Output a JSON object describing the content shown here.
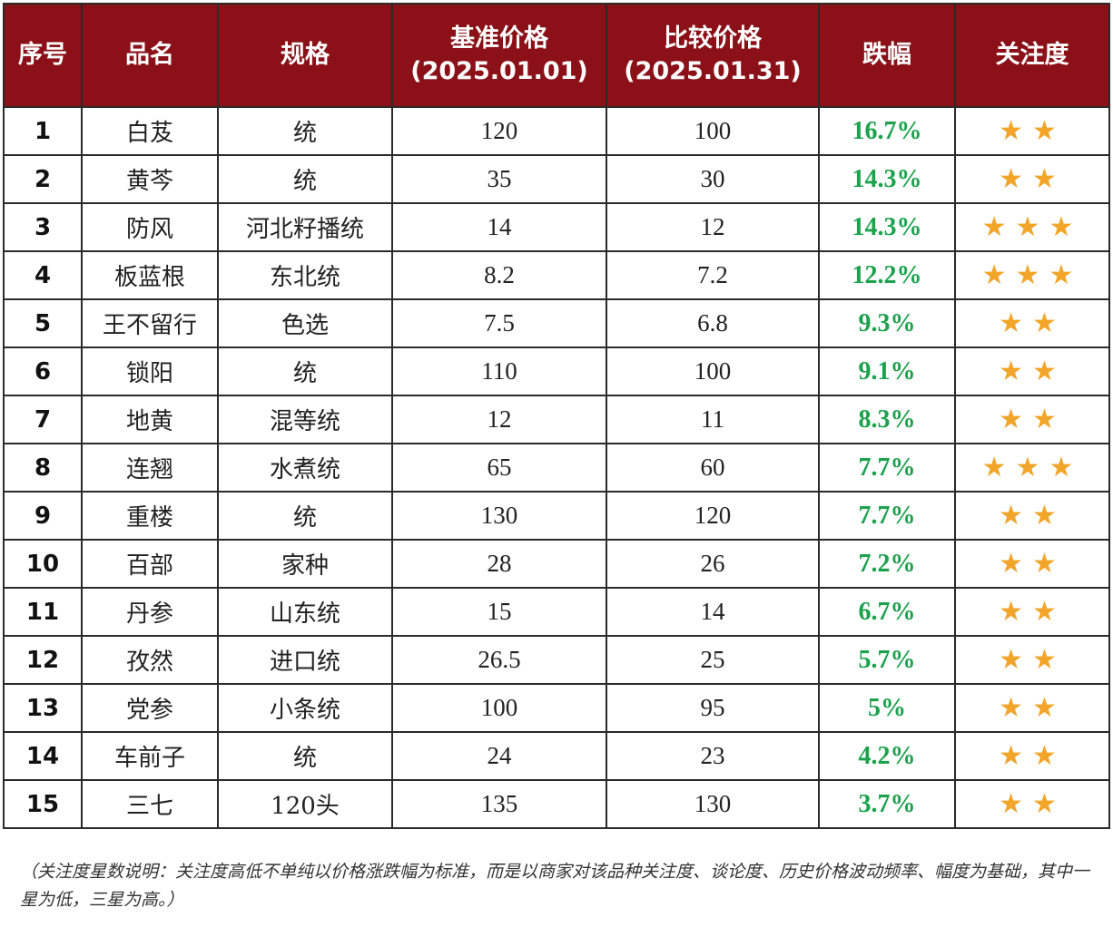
{
  "table": {
    "headers": [
      "序号",
      "品名",
      "规格",
      "基准价格",
      "(2025.01.01)",
      "比较价格",
      "(2025.01.31)",
      "跌幅",
      "关注度"
    ],
    "columns": {
      "index": "序号",
      "name": "品名",
      "spec": "规格",
      "base_price_title": "基准价格",
      "base_price_date": "(2025.01.01)",
      "compare_price_title": "比较价格",
      "compare_price_date": "(2025.01.31)",
      "drop": "跌幅",
      "attention": "关注度"
    },
    "rows": [
      {
        "index": "1",
        "name": "白芨",
        "spec": "统",
        "base": "120",
        "compare": "100",
        "drop": "16.7%",
        "stars": 2,
        "stars_text": "★★"
      },
      {
        "index": "2",
        "name": "黄芩",
        "spec": "统",
        "base": "35",
        "compare": "30",
        "drop": "14.3%",
        "stars": 2,
        "stars_text": "★★"
      },
      {
        "index": "3",
        "name": "防风",
        "spec": "河北籽播统",
        "base": "14",
        "compare": "12",
        "drop": "14.3%",
        "stars": 3,
        "stars_text": "★★★"
      },
      {
        "index": "4",
        "name": "板蓝根",
        "spec": "东北统",
        "base": "8.2",
        "compare": "7.2",
        "drop": "12.2%",
        "stars": 3,
        "stars_text": "★★★"
      },
      {
        "index": "5",
        "name": "王不留行",
        "spec": "色选",
        "base": "7.5",
        "compare": "6.8",
        "drop": "9.3%",
        "stars": 2,
        "stars_text": "★★"
      },
      {
        "index": "6",
        "name": "锁阳",
        "spec": "统",
        "base": "110",
        "compare": "100",
        "drop": "9.1%",
        "stars": 2,
        "stars_text": "★★"
      },
      {
        "index": "7",
        "name": "地黄",
        "spec": "混等统",
        "base": "12",
        "compare": "11",
        "drop": "8.3%",
        "stars": 2,
        "stars_text": "★★"
      },
      {
        "index": "8",
        "name": "连翘",
        "spec": "水煮统",
        "base": "65",
        "compare": "60",
        "drop": "7.7%",
        "stars": 3,
        "stars_text": "★★★"
      },
      {
        "index": "9",
        "name": "重楼",
        "spec": "统",
        "base": "130",
        "compare": "120",
        "drop": "7.7%",
        "stars": 2,
        "stars_text": "★★"
      },
      {
        "index": "10",
        "name": "百部",
        "spec": "家种",
        "base": "28",
        "compare": "26",
        "drop": "7.2%",
        "stars": 2,
        "stars_text": "★★"
      },
      {
        "index": "11",
        "name": "丹参",
        "spec": "山东统",
        "base": "15",
        "compare": "14",
        "drop": "6.7%",
        "stars": 2,
        "stars_text": "★★"
      },
      {
        "index": "12",
        "name": "孜然",
        "spec": "进口统",
        "base": "26.5",
        "compare": "25",
        "drop": "5.7%",
        "stars": 2,
        "stars_text": "★★"
      },
      {
        "index": "13",
        "name": "党参",
        "spec": "小条统",
        "base": "100",
        "compare": "95",
        "drop": "5%",
        "stars": 2,
        "stars_text": "★★"
      },
      {
        "index": "14",
        "name": "车前子",
        "spec": "统",
        "base": "24",
        "compare": "23",
        "drop": "4.2%",
        "stars": 2,
        "stars_text": "★★"
      },
      {
        "index": "15",
        "name": "三七",
        "spec": "120头",
        "base": "135",
        "compare": "130",
        "drop": "3.7%",
        "stars": 2,
        "stars_text": "★★"
      }
    ]
  },
  "note": "（关注度星数说明：关注度高低不单纯以价格涨跌幅为标准，而是以商家对该品种关注度、谈论度、历史价格波动频率、幅度为基础，其中一星为低，三星为高。）",
  "colors": {
    "header_bg": "#8b1018",
    "header_text": "#ffffff",
    "drop_text": "#1ca24c",
    "star": "#f2a528",
    "border": "#2a2a2a"
  },
  "icons": {
    "star": "star-icon"
  }
}
